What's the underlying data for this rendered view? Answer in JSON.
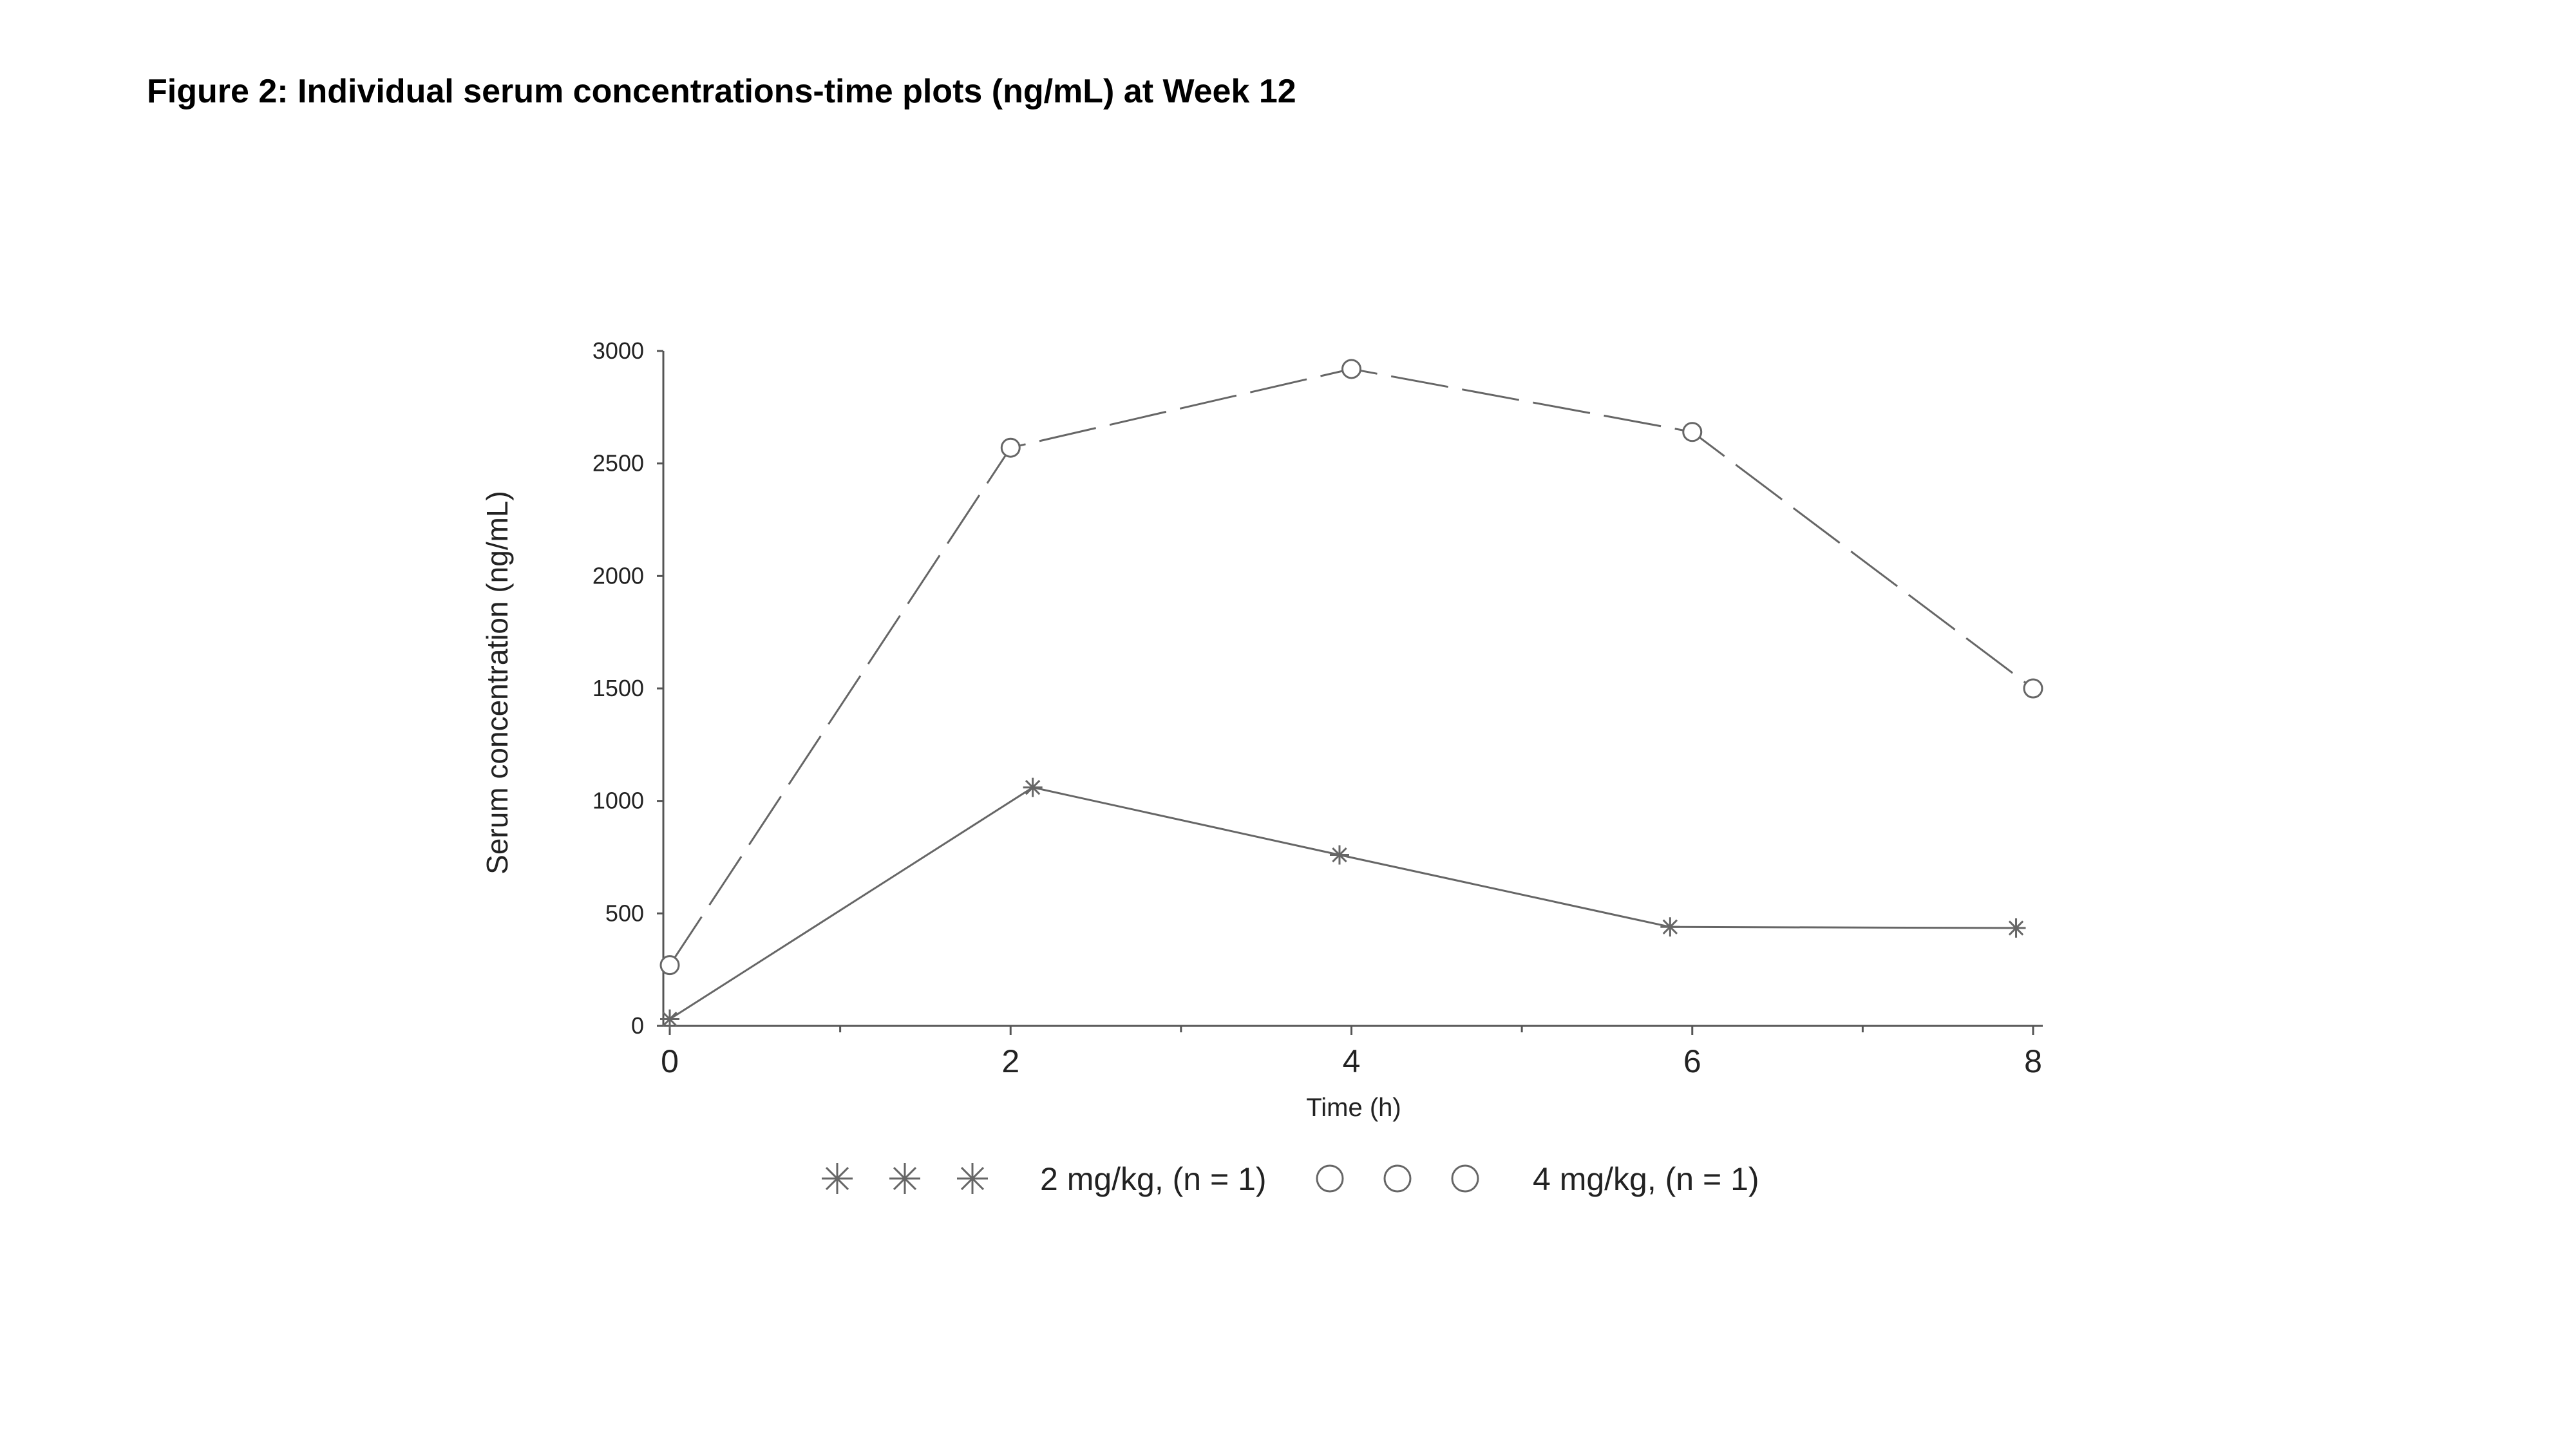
{
  "figure": {
    "title": "Figure 2: Individual serum concentrations-time plots (ng/mL) at Week 12"
  },
  "chart_data": {
    "type": "line",
    "xlabel": "Time (h)",
    "ylabel": "Serum concentration (ng/mL)",
    "xlim": [
      0,
      8
    ],
    "ylim": [
      0,
      3000
    ],
    "x_ticks": [
      "0",
      "2",
      "4",
      "6",
      "8"
    ],
    "y_ticks": [
      "0",
      "500",
      "1000",
      "1500",
      "2000",
      "2500",
      "3000"
    ],
    "grid": false,
    "legend_position": "bottom",
    "series": [
      {
        "name": "2 mg/kg, (n = 1)",
        "marker": "asterisk",
        "line_style": "solid",
        "color": "#666666",
        "x": [
          0,
          2.13,
          3.93,
          5.87,
          7.9
        ],
        "y": [
          30,
          1060,
          760,
          440,
          435
        ]
      },
      {
        "name": "4 mg/kg, (n = 1)",
        "marker": "circle",
        "line_style": "dashed",
        "color": "#666666",
        "x": [
          0,
          2,
          4,
          6,
          8
        ],
        "y": [
          270,
          2570,
          2920,
          2640,
          1500
        ]
      }
    ]
  }
}
